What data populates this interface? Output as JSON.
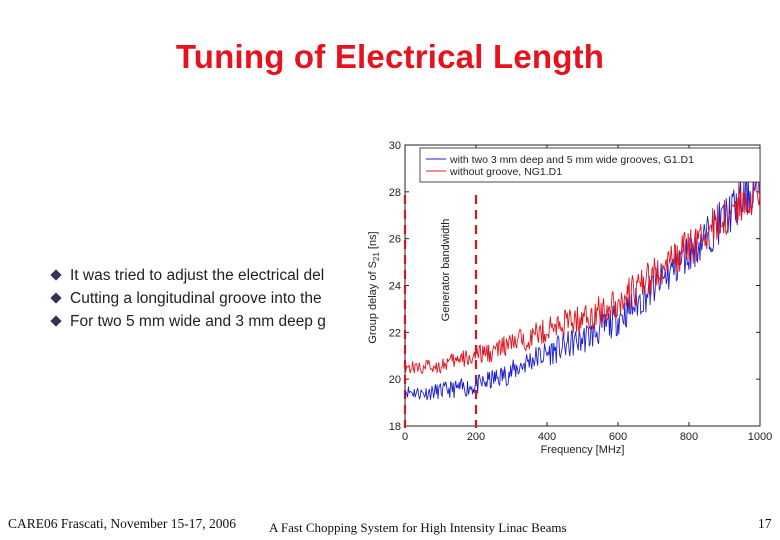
{
  "slide": {
    "title": "Tuning of Electrical Length",
    "bullets": [
      "It was tried to adjust the electrical del",
      "Cutting a longitudinal groove into the",
      "For two 5 mm wide and 3 mm deep g"
    ],
    "footer_left": "CARE06 Frascati, November 15-17, 2006",
    "footer_center": "A Fast Chopping System for High Intensity Linac Beams",
    "page_number": "17"
  },
  "colors": {
    "title": "#e8121c",
    "series_grooves": "#1f1fd2",
    "series_no_groove": "#e0141e",
    "bandwidth_marker": "#d8141e"
  },
  "chart_data": {
    "type": "line",
    "xlabel": "Frequency [MHz]",
    "ylabel_main": "Group delay of S",
    "ylabel_sub": "21",
    "ylabel_unit": " [ns]",
    "xlim": [
      0,
      1000
    ],
    "ylim": [
      18,
      30
    ],
    "xticks": [
      "0",
      "200",
      "400",
      "600",
      "800",
      "1000"
    ],
    "yticks": [
      "18",
      "20",
      "22",
      "24",
      "26",
      "28",
      "30"
    ],
    "legend_position": "top-right",
    "annotation": "Generator bandwidth",
    "bandwidth_markers_mhz": [
      0,
      200
    ],
    "series": [
      {
        "name": "with two 3 mm deep and 5 mm wide grooves, G1.D1",
        "color": "#1f1fd2",
        "x": [
          0,
          50,
          100,
          150,
          200,
          250,
          300,
          350,
          400,
          450,
          500,
          550,
          600,
          650,
          700,
          750,
          800,
          850,
          900,
          950,
          1000
        ],
        "y": [
          19.5,
          19.4,
          19.5,
          19.6,
          19.7,
          20.0,
          20.3,
          20.8,
          21.1,
          21.4,
          21.7,
          22.1,
          22.6,
          23.2,
          23.9,
          24.6,
          25.4,
          26.1,
          26.9,
          27.6,
          28.4
        ]
      },
      {
        "name": "without groove, NG1.D1",
        "color": "#e0141e",
        "x": [
          0,
          50,
          100,
          150,
          200,
          250,
          300,
          350,
          400,
          450,
          500,
          550,
          600,
          650,
          700,
          750,
          800,
          850,
          900,
          950,
          1000
        ],
        "y": [
          20.5,
          20.5,
          20.6,
          20.8,
          21.0,
          21.2,
          21.5,
          21.8,
          22.1,
          22.4,
          22.6,
          22.9,
          23.3,
          23.8,
          24.4,
          25.0,
          25.6,
          26.2,
          26.9,
          27.6,
          28.3
        ]
      }
    ]
  }
}
